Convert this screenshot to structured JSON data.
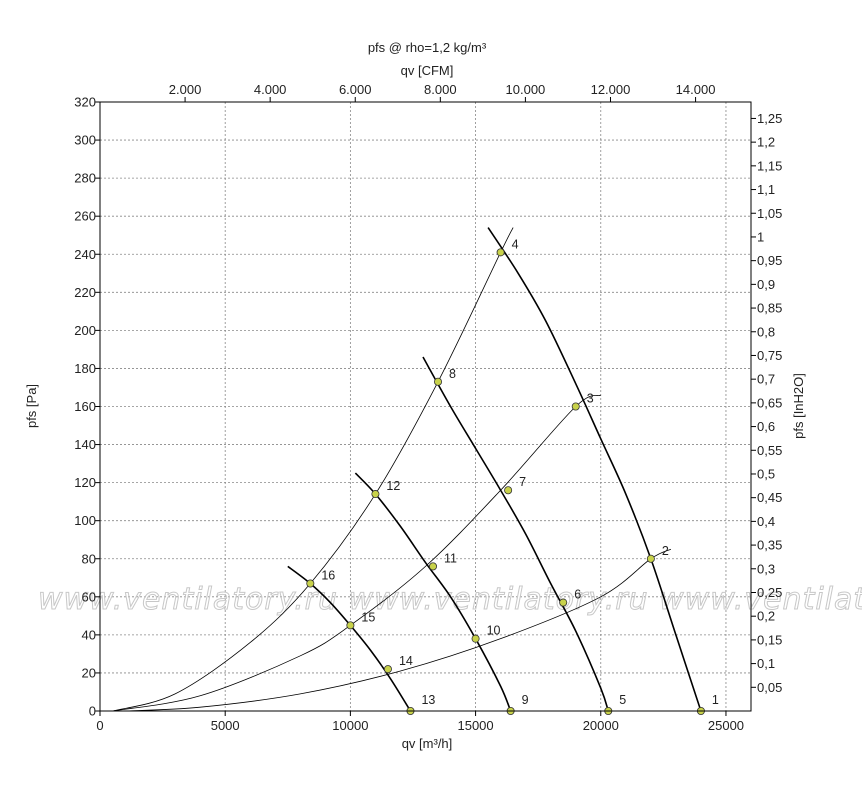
{
  "chart_data": {
    "type": "line",
    "title": "pfs @ rho=1,2 kg/m³",
    "xlabel": "qv [m³/h]",
    "ylabel": "pfs [Pa]",
    "x2label": "qv [CFM]",
    "y2label": "pfs [InH2O]",
    "xlim": [
      0,
      26000
    ],
    "ylim": [
      0,
      320
    ],
    "xticks": [
      0,
      5000,
      10000,
      15000,
      20000,
      25000
    ],
    "xtick_labels": [
      "0",
      "5000",
      "10000",
      "15000",
      "20000",
      "25000"
    ],
    "yticks": [
      0,
      20,
      40,
      60,
      80,
      100,
      120,
      140,
      160,
      180,
      200,
      220,
      240,
      260,
      280,
      300,
      320
    ],
    "yticks_labels": [
      "0",
      "20",
      "40",
      "60",
      "80",
      "100",
      "120",
      "140",
      "160",
      "180",
      "200",
      "220",
      "240",
      "260",
      "280",
      "300",
      "320"
    ],
    "x2ticks": [
      2000,
      4000,
      6000,
      8000,
      10000,
      12000,
      14000
    ],
    "x2tick_labels": [
      "2.000",
      "4.000",
      "6.000",
      "8.000",
      "10.000",
      "12.000",
      "14.000"
    ],
    "y2ticks": [
      0.05,
      0.1,
      0.15,
      0.2,
      0.25,
      0.3,
      0.35,
      0.4,
      0.45,
      0.5,
      0.55,
      0.6,
      0.65,
      0.7,
      0.75,
      0.8,
      0.85,
      0.9,
      0.95,
      1,
      1.05,
      1.1,
      1.15,
      1.2,
      1.25
    ],
    "y2tick_labels": [
      "0,05",
      "0,1",
      "0,15",
      "0,2",
      "0,25",
      "0,3",
      "0,35",
      "0,4",
      "0,45",
      "0,5",
      "0,55",
      "0,6",
      "0,65",
      "0,7",
      "0,75",
      "0,8",
      "0,85",
      "0,9",
      "0,95",
      "1",
      "1,05",
      "1,1",
      "1,15",
      "1,2",
      "1,25"
    ],
    "grid": true,
    "fan_curves": [
      {
        "x": [
          15500,
          16700,
          17800,
          19000,
          20000,
          21000,
          22000,
          23000,
          24000
        ],
        "y": [
          254,
          230,
          205,
          172,
          143,
          114,
          80,
          40,
          0
        ]
      },
      {
        "x": [
          12900,
          14000,
          15000,
          16000,
          17000,
          18000,
          19000,
          20000,
          20300
        ],
        "y": [
          186,
          160,
          138,
          116,
          93,
          67,
          42,
          12,
          0
        ]
      },
      {
        "x": [
          10200,
          11000,
          12000,
          13000,
          14000,
          15000,
          16000,
          16400
        ],
        "y": [
          125,
          114,
          97,
          78,
          60,
          38,
          13,
          0
        ]
      },
      {
        "x": [
          7500,
          8400,
          9200,
          10000,
          10800,
          11600,
          12400
        ],
        "y": [
          76,
          67,
          57,
          45,
          32,
          17,
          0
        ]
      }
    ],
    "system_curves": [
      {
        "x": [
          1000,
          4000,
          8000,
          12000,
          16000,
          20000,
          22000,
          22800
        ],
        "y": [
          0,
          2,
          9,
          21,
          38,
          60,
          80,
          85
        ]
      },
      {
        "x": [
          500,
          4000,
          8000,
          10000,
          13000,
          16000,
          19000,
          20000
        ],
        "y": [
          0,
          8,
          29,
          45,
          76,
          116,
          160,
          166
        ]
      },
      {
        "x": [
          500,
          3000,
          6000,
          8400,
          11000,
          13500,
          16000,
          16500
        ],
        "y": [
          0,
          9,
          36,
          67,
          114,
          173,
          241,
          254
        ]
      }
    ],
    "points": [
      {
        "label": "1",
        "x": 24000,
        "y": 0
      },
      {
        "label": "2",
        "x": 22000,
        "y": 80
      },
      {
        "label": "3",
        "x": 19000,
        "y": 160
      },
      {
        "label": "4",
        "x": 16000,
        "y": 241
      },
      {
        "label": "5",
        "x": 20300,
        "y": 0
      },
      {
        "label": "6",
        "x": 18500,
        "y": 57
      },
      {
        "label": "7",
        "x": 16300,
        "y": 116
      },
      {
        "label": "8",
        "x": 13500,
        "y": 173
      },
      {
        "label": "9",
        "x": 16400,
        "y": 0
      },
      {
        "label": "10",
        "x": 15000,
        "y": 38
      },
      {
        "label": "11",
        "x": 13300,
        "y": 76
      },
      {
        "label": "12",
        "x": 11000,
        "y": 114
      },
      {
        "label": "13",
        "x": 12400,
        "y": 0
      },
      {
        "label": "14",
        "x": 11500,
        "y": 22
      },
      {
        "label": "15",
        "x": 10000,
        "y": 45
      },
      {
        "label": "16",
        "x": 8400,
        "y": 67
      }
    ],
    "point_color": "#c8d24a",
    "line_color": "#000000",
    "grid_color": "#888888"
  },
  "watermark": {
    "text": "www.ventilatory.ru   www.ventilatory.ru   www.ventilatory.ru"
  }
}
